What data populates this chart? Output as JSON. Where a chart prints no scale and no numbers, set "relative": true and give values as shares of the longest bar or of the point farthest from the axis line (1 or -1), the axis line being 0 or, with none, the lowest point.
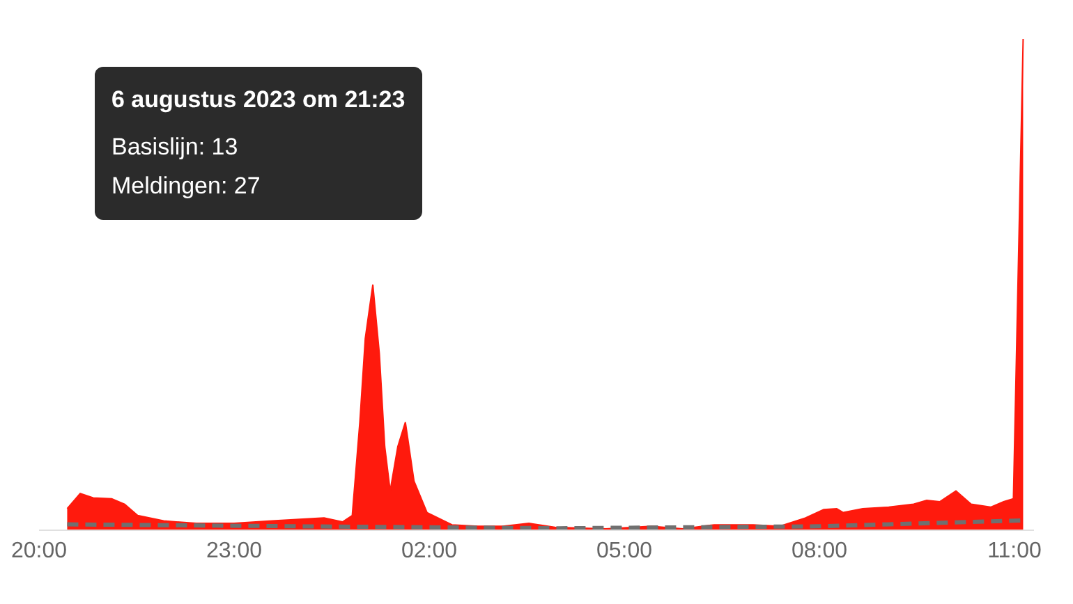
{
  "chart_data": {
    "type": "area",
    "relative": true,
    "x": [
      "2023-08-06T20:26",
      "2023-08-06T20:38",
      "2023-08-06T20:50",
      "2023-08-06T21:07",
      "2023-08-06T21:19",
      "2023-08-06T21:31",
      "2023-08-06T21:55",
      "2023-08-06T22:25",
      "2023-08-06T23:00",
      "2023-08-06T23:35",
      "2023-08-07T00:23",
      "2023-08-07T00:40",
      "2023-08-07T00:49",
      "2023-08-07T00:56",
      "2023-08-07T01:01",
      "2023-08-07T01:08",
      "2023-08-07T01:14",
      "2023-08-07T01:19",
      "2023-08-07T01:24",
      "2023-08-07T01:31",
      "2023-08-07T01:38",
      "2023-08-07T01:46",
      "2023-08-07T01:58",
      "2023-08-07T02:21",
      "2023-08-07T02:45",
      "2023-08-07T03:08",
      "2023-08-07T03:32",
      "2023-08-07T03:56",
      "2023-08-07T04:43",
      "2023-08-07T05:25",
      "2023-08-07T05:54",
      "2023-08-07T06:23",
      "2023-08-07T06:59",
      "2023-08-07T07:23",
      "2023-08-07T07:47",
      "2023-08-07T08:04",
      "2023-08-07T08:16",
      "2023-08-07T08:22",
      "2023-08-07T08:40",
      "2023-08-07T09:04",
      "2023-08-07T09:27",
      "2023-08-07T09:39",
      "2023-08-07T09:51",
      "2023-08-07T10:06",
      "2023-08-07T10:20",
      "2023-08-07T10:38",
      "2023-08-07T10:50",
      "2023-08-07T10:59",
      "2023-08-07T11:08"
    ],
    "series": [
      {
        "color": "#ff1a0d",
        "values": [
          0.044,
          0.075,
          0.066,
          0.064,
          0.053,
          0.03,
          0.019,
          0.014,
          0.014,
          0.019,
          0.025,
          0.017,
          0.03,
          0.22,
          0.39,
          0.5,
          0.36,
          0.17,
          0.08,
          0.17,
          0.22,
          0.1,
          0.036,
          0.011,
          0.008,
          0.008,
          0.014,
          0.006,
          0.003,
          0.008,
          0.003,
          0.011,
          0.011,
          0.008,
          0.025,
          0.042,
          0.044,
          0.036,
          0.044,
          0.047,
          0.053,
          0.061,
          0.058,
          0.08,
          0.053,
          0.047,
          0.058,
          0.064,
          1.0
        ]
      },
      {
        "type": "line",
        "color": "#707070",
        "line_style": "dashed",
        "x": [
          "2023-08-06T20:26",
          "2023-08-07T00:00",
          "2023-08-07T04:00",
          "2023-08-07T08:00",
          "2023-08-07T11:08"
        ],
        "values": [
          0.012,
          0.008,
          0.004,
          0.008,
          0.02
        ]
      }
    ],
    "xlim": [
      "2023-08-06T20:00",
      "2023-08-07T11:18"
    ],
    "xticks": [
      {
        "value": "2023-08-06T20:00",
        "label": "20:00"
      },
      {
        "value": "2023-08-06T23:00",
        "label": "23:00"
      },
      {
        "value": "2023-08-07T02:00",
        "label": "02:00"
      },
      {
        "value": "2023-08-07T05:00",
        "label": "05:00"
      },
      {
        "value": "2023-08-07T08:00",
        "label": "08:00"
      },
      {
        "value": "2023-08-07T11:00",
        "label": "11:00"
      }
    ],
    "marker": "none",
    "annotations": [
      "6 augustus 2023 om 21:23",
      "Basislijn: 13",
      "Meldingen: 27"
    ]
  }
}
